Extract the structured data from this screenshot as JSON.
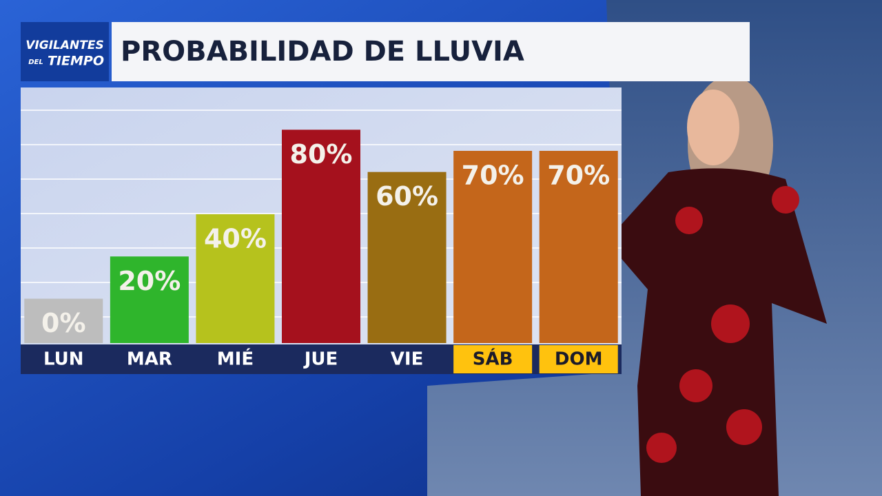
{
  "logo": {
    "line1": "VIGILANTES",
    "line2a": "DEL",
    "line2b": "TIEMPO"
  },
  "chart_data": {
    "type": "bar",
    "title": "PROBABILIDAD DE LLUVIA",
    "categories": [
      "LUN",
      "MAR",
      "MIÉ",
      "JUE",
      "VIE",
      "SÁB",
      "DOM"
    ],
    "values": [
      0,
      20,
      40,
      80,
      60,
      70,
      70
    ],
    "value_labels": [
      "0%",
      "20%",
      "40%",
      "80%",
      "60%",
      "70%",
      "70%"
    ],
    "colors": [
      "#bdbdbd",
      "#2fb52c",
      "#b6c21d",
      "#a5111d",
      "#996d12",
      "#c4661b",
      "#c4661b"
    ],
    "label_backgrounds": [
      null,
      null,
      null,
      null,
      null,
      "#ffc20e",
      "#ffc20e"
    ],
    "ylim": [
      -21,
      100
    ]
  }
}
